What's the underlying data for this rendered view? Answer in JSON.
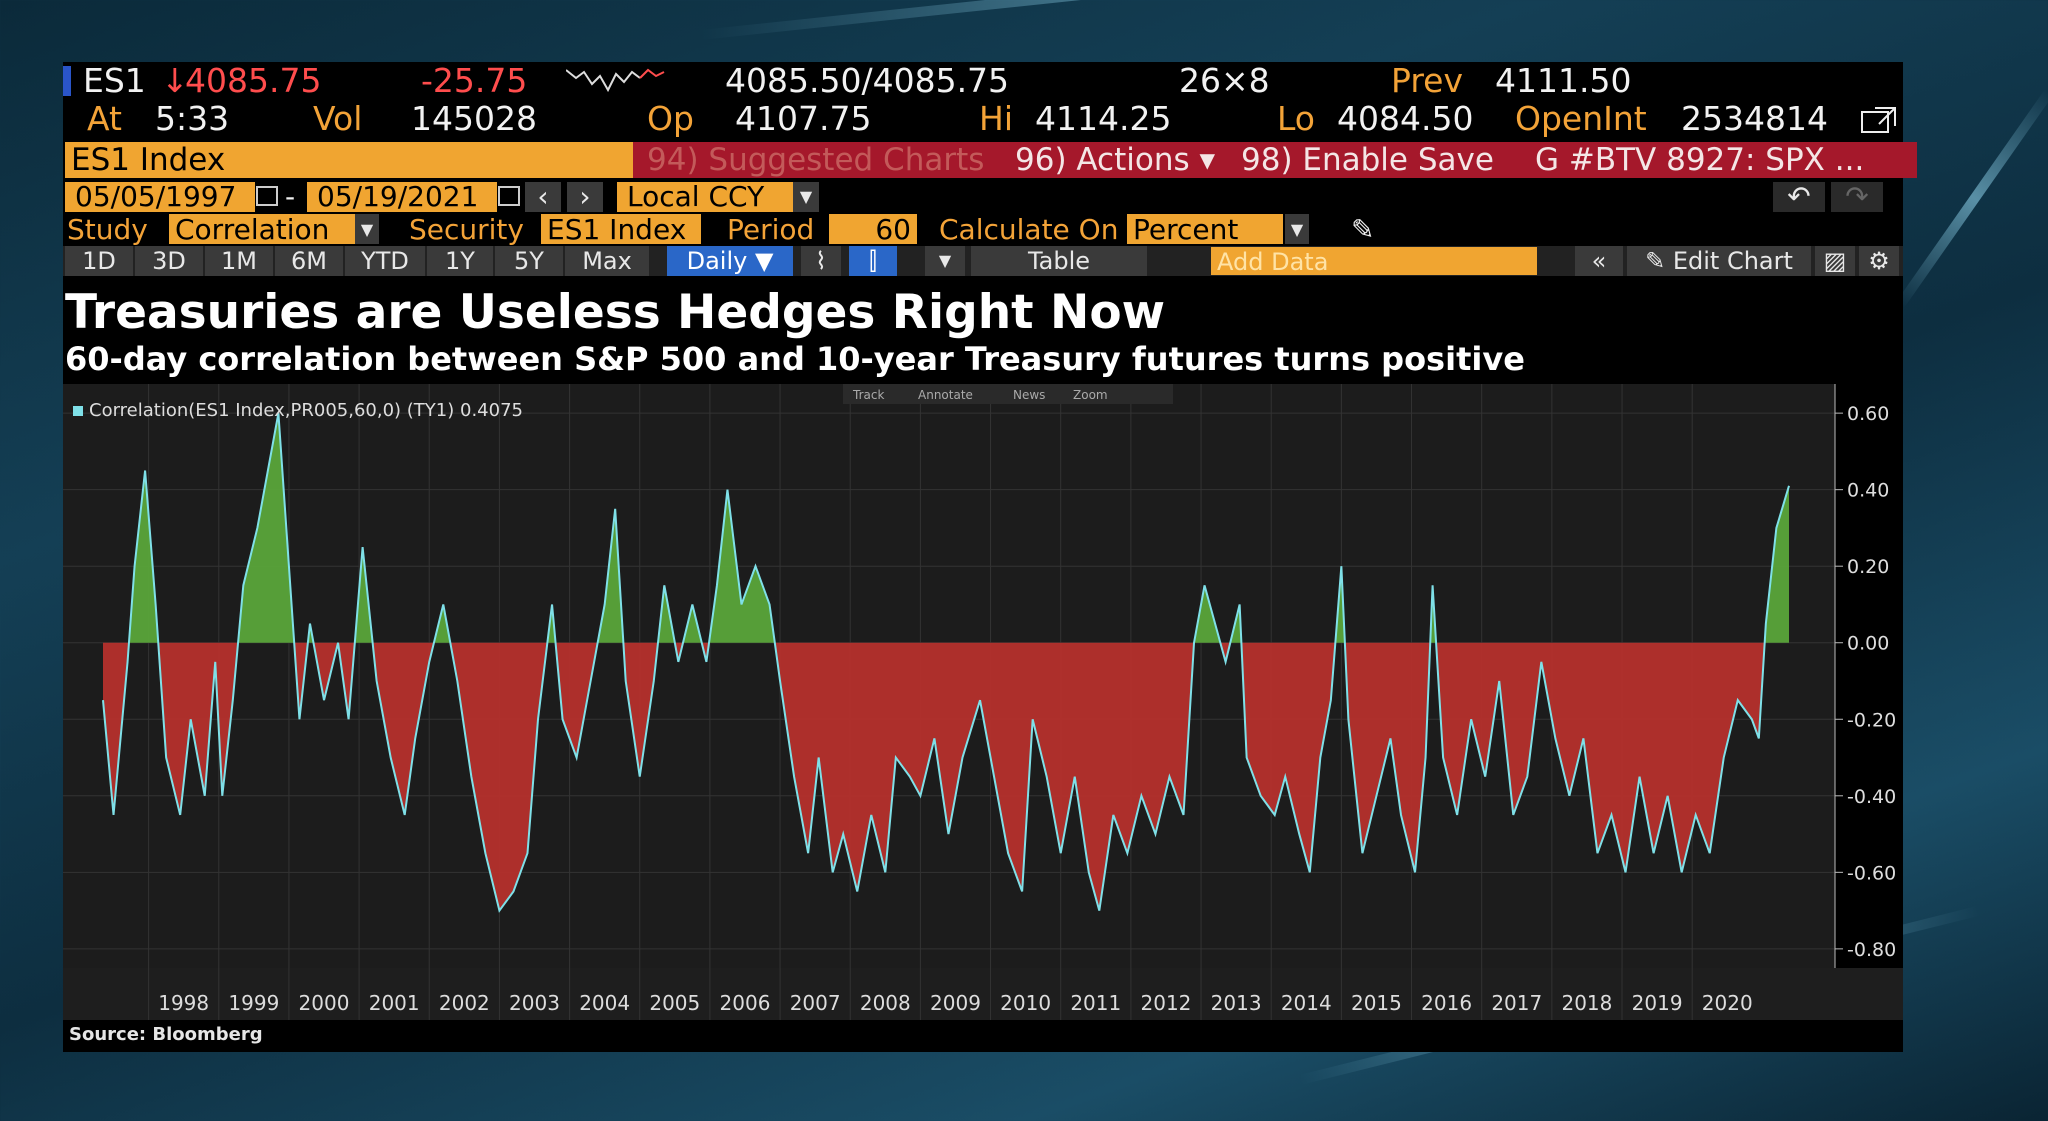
{
  "quote": {
    "ticker": "ES1",
    "arrow": "↓",
    "last": "4085.75",
    "change": "-25.75",
    "bid_ask": "4085.50/4085.75",
    "size": "26×8",
    "prev_label": "Prev",
    "prev": "4111.50",
    "at_label": "At",
    "time": "5:33",
    "vol_label": "Vol",
    "vol": "145028",
    "op_label": "Op",
    "op": "4107.75",
    "hi_label": "Hi",
    "hi": "4114.25",
    "lo_label": "Lo",
    "lo": "4084.50",
    "openint_label": "OpenInt",
    "openint": "2534814"
  },
  "toolbar": {
    "security": "ES1 Index",
    "suggested": "94) Suggested Charts",
    "actions": "96) Actions ▾",
    "enable_save": "98) Enable Save",
    "chart_id": "G #BTV 8927: SPX ..."
  },
  "range": {
    "start": "05/05/1997",
    "dash": "-",
    "end": "05/19/2021",
    "currency": "Local CCY"
  },
  "study": {
    "study_label": "Study",
    "study_value": "Correlation",
    "security_label": "Security",
    "security_value": "ES1 Index",
    "period_label": "Period",
    "period_value": "60",
    "calc_label": "Calculate On",
    "calc_value": "Percent"
  },
  "periods": [
    "1D",
    "3D",
    "1M",
    "6M",
    "YTD",
    "1Y",
    "5Y",
    "Max"
  ],
  "frequency": "Daily ▼",
  "table_label": "Table",
  "add_data_placeholder": "Add Data",
  "edit_chart": "Edit Chart",
  "headline": "Treasuries are Useless Hedges Right Now",
  "subheadline": "60-day correlation between S&P 500 and 10-year Treasury futures turns positive",
  "chart_tools": [
    "Track",
    "Annotate",
    "News",
    "Zoom"
  ],
  "source": "Source: Bloomberg",
  "colors": {
    "positive": "#5aa53a",
    "negative": "#b5302c",
    "line": "#7fe0e8",
    "amber": "#f0a531"
  },
  "chart_data": {
    "type": "area",
    "legend": "Correlation(ES1 Index,PR005,60,0) (TY1) 0.4075",
    "x_tick_labels": [
      "1998",
      "1999",
      "2000",
      "2001",
      "2002",
      "2003",
      "2004",
      "2005",
      "2006",
      "2007",
      "2008",
      "2009",
      "2010",
      "2011",
      "2012",
      "2013",
      "2014",
      "2015",
      "2016",
      "2017",
      "2018",
      "2019",
      "2020"
    ],
    "y_tick_labels": [
      "0.60",
      "0.40",
      "0.20",
      "0.00",
      "-0.20",
      "-0.40",
      "-0.60",
      "-0.80"
    ],
    "ylim": [
      -0.85,
      0.65
    ],
    "xlim": [
      1997.35,
      2021.38
    ],
    "series": [
      {
        "name": "Correlation(ES1 Index,PR005,60,0) (TY1)",
        "points": [
          [
            1997.35,
            -0.15
          ],
          [
            1997.5,
            -0.45
          ],
          [
            1997.7,
            -0.05
          ],
          [
            1997.8,
            0.2
          ],
          [
            1997.95,
            0.45
          ],
          [
            1998.1,
            0.1
          ],
          [
            1998.25,
            -0.3
          ],
          [
            1998.45,
            -0.45
          ],
          [
            1998.6,
            -0.2
          ],
          [
            1998.8,
            -0.4
          ],
          [
            1998.95,
            -0.05
          ],
          [
            1999.05,
            -0.4
          ],
          [
            1999.2,
            -0.15
          ],
          [
            1999.35,
            0.15
          ],
          [
            1999.55,
            0.3
          ],
          [
            1999.7,
            0.45
          ],
          [
            1999.85,
            0.6
          ],
          [
            2000.0,
            0.2
          ],
          [
            2000.15,
            -0.2
          ],
          [
            2000.3,
            0.05
          ],
          [
            2000.5,
            -0.15
          ],
          [
            2000.7,
            0.0
          ],
          [
            2000.85,
            -0.2
          ],
          [
            2001.05,
            0.25
          ],
          [
            2001.25,
            -0.1
          ],
          [
            2001.45,
            -0.3
          ],
          [
            2001.65,
            -0.45
          ],
          [
            2001.8,
            -0.25
          ],
          [
            2002.0,
            -0.05
          ],
          [
            2002.2,
            0.1
          ],
          [
            2002.4,
            -0.1
          ],
          [
            2002.6,
            -0.35
          ],
          [
            2002.8,
            -0.55
          ],
          [
            2003.0,
            -0.7
          ],
          [
            2003.2,
            -0.65
          ],
          [
            2003.4,
            -0.55
          ],
          [
            2003.55,
            -0.2
          ],
          [
            2003.75,
            0.1
          ],
          [
            2003.9,
            -0.2
          ],
          [
            2004.1,
            -0.3
          ],
          [
            2004.3,
            -0.1
          ],
          [
            2004.5,
            0.1
          ],
          [
            2004.65,
            0.35
          ],
          [
            2004.8,
            -0.1
          ],
          [
            2005.0,
            -0.35
          ],
          [
            2005.2,
            -0.1
          ],
          [
            2005.35,
            0.15
          ],
          [
            2005.55,
            -0.05
          ],
          [
            2005.75,
            0.1
          ],
          [
            2005.95,
            -0.05
          ],
          [
            2006.1,
            0.15
          ],
          [
            2006.25,
            0.4
          ],
          [
            2006.45,
            0.1
          ],
          [
            2006.65,
            0.2
          ],
          [
            2006.85,
            0.1
          ],
          [
            2007.0,
            -0.1
          ],
          [
            2007.2,
            -0.35
          ],
          [
            2007.4,
            -0.55
          ],
          [
            2007.55,
            -0.3
          ],
          [
            2007.75,
            -0.6
          ],
          [
            2007.9,
            -0.5
          ],
          [
            2008.1,
            -0.65
          ],
          [
            2008.3,
            -0.45
          ],
          [
            2008.5,
            -0.6
          ],
          [
            2008.65,
            -0.3
          ],
          [
            2008.85,
            -0.35
          ],
          [
            2009.0,
            -0.4
          ],
          [
            2009.2,
            -0.25
          ],
          [
            2009.4,
            -0.5
          ],
          [
            2009.6,
            -0.3
          ],
          [
            2009.85,
            -0.15
          ],
          [
            2010.05,
            -0.35
          ],
          [
            2010.25,
            -0.55
          ],
          [
            2010.45,
            -0.65
          ],
          [
            2010.6,
            -0.2
          ],
          [
            2010.8,
            -0.35
          ],
          [
            2011.0,
            -0.55
          ],
          [
            2011.2,
            -0.35
          ],
          [
            2011.4,
            -0.6
          ],
          [
            2011.55,
            -0.7
          ],
          [
            2011.75,
            -0.45
          ],
          [
            2011.95,
            -0.55
          ],
          [
            2012.15,
            -0.4
          ],
          [
            2012.35,
            -0.5
          ],
          [
            2012.55,
            -0.35
          ],
          [
            2012.75,
            -0.45
          ],
          [
            2012.9,
            0.0
          ],
          [
            2013.05,
            0.15
          ],
          [
            2013.2,
            0.05
          ],
          [
            2013.35,
            -0.05
          ],
          [
            2013.55,
            0.1
          ],
          [
            2013.65,
            -0.3
          ],
          [
            2013.85,
            -0.4
          ],
          [
            2014.05,
            -0.45
          ],
          [
            2014.2,
            -0.35
          ],
          [
            2014.4,
            -0.5
          ],
          [
            2014.55,
            -0.6
          ],
          [
            2014.7,
            -0.3
          ],
          [
            2014.85,
            -0.15
          ],
          [
            2015.0,
            0.2
          ],
          [
            2015.1,
            -0.2
          ],
          [
            2015.3,
            -0.55
          ],
          [
            2015.5,
            -0.4
          ],
          [
            2015.7,
            -0.25
          ],
          [
            2015.85,
            -0.45
          ],
          [
            2016.05,
            -0.6
          ],
          [
            2016.2,
            -0.3
          ],
          [
            2016.3,
            0.15
          ],
          [
            2016.45,
            -0.3
          ],
          [
            2016.65,
            -0.45
          ],
          [
            2016.85,
            -0.2
          ],
          [
            2017.05,
            -0.35
          ],
          [
            2017.25,
            -0.1
          ],
          [
            2017.45,
            -0.45
          ],
          [
            2017.65,
            -0.35
          ],
          [
            2017.85,
            -0.05
          ],
          [
            2018.05,
            -0.25
          ],
          [
            2018.25,
            -0.4
          ],
          [
            2018.45,
            -0.25
          ],
          [
            2018.65,
            -0.55
          ],
          [
            2018.85,
            -0.45
          ],
          [
            2019.05,
            -0.6
          ],
          [
            2019.25,
            -0.35
          ],
          [
            2019.45,
            -0.55
          ],
          [
            2019.65,
            -0.4
          ],
          [
            2019.85,
            -0.6
          ],
          [
            2020.05,
            -0.45
          ],
          [
            2020.25,
            -0.55
          ],
          [
            2020.45,
            -0.3
          ],
          [
            2020.65,
            -0.15
          ],
          [
            2020.85,
            -0.2
          ],
          [
            2020.95,
            -0.25
          ],
          [
            2021.05,
            0.05
          ],
          [
            2021.2,
            0.3
          ],
          [
            2021.38,
            0.41
          ]
        ]
      }
    ]
  }
}
